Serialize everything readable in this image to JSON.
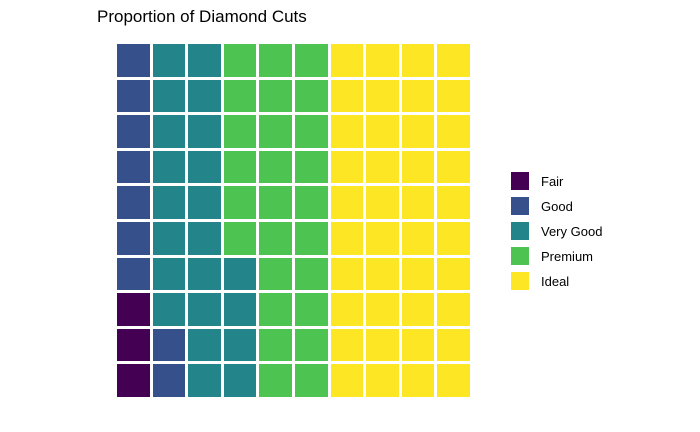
{
  "title": "Proportion of Diamond Cuts",
  "colors": {
    "fair": "#440154",
    "good": "#35508B",
    "very_good": "#238489",
    "premium": "#4DC351",
    "ideal": "#FDE725",
    "background": "#FFFFFF",
    "gap": "#FFFFFF",
    "text": "#000000"
  },
  "legend": {
    "position": "right",
    "items": [
      {
        "key": "fair",
        "label": "Fair"
      },
      {
        "key": "good",
        "label": "Good"
      },
      {
        "key": "very_good",
        "label": "Very Good"
      },
      {
        "key": "premium",
        "label": "Premium"
      },
      {
        "key": "ideal",
        "label": "Ideal"
      }
    ]
  },
  "chart_data": {
    "type": "waffle",
    "title": "Proportion of Diamond Cuts",
    "grid_rows": 10,
    "grid_cols": 10,
    "total_squares": 100,
    "units": "percent (1 square = 1%)",
    "categories": [
      "Fair",
      "Good",
      "Very Good",
      "Premium",
      "Ideal"
    ],
    "values": [
      3,
      9,
      22,
      26,
      40
    ],
    "legend_position": "right",
    "axes": "none",
    "grid": [
      [
        "good",
        "very_good",
        "very_good",
        "premium",
        "premium",
        "premium",
        "ideal",
        "ideal",
        "ideal",
        "ideal"
      ],
      [
        "good",
        "very_good",
        "very_good",
        "premium",
        "premium",
        "premium",
        "ideal",
        "ideal",
        "ideal",
        "ideal"
      ],
      [
        "good",
        "very_good",
        "very_good",
        "premium",
        "premium",
        "premium",
        "ideal",
        "ideal",
        "ideal",
        "ideal"
      ],
      [
        "good",
        "very_good",
        "very_good",
        "premium",
        "premium",
        "premium",
        "ideal",
        "ideal",
        "ideal",
        "ideal"
      ],
      [
        "good",
        "very_good",
        "very_good",
        "premium",
        "premium",
        "premium",
        "ideal",
        "ideal",
        "ideal",
        "ideal"
      ],
      [
        "good",
        "very_good",
        "very_good",
        "premium",
        "premium",
        "premium",
        "ideal",
        "ideal",
        "ideal",
        "ideal"
      ],
      [
        "good",
        "very_good",
        "very_good",
        "very_good",
        "premium",
        "premium",
        "ideal",
        "ideal",
        "ideal",
        "ideal"
      ],
      [
        "fair",
        "very_good",
        "very_good",
        "very_good",
        "premium",
        "premium",
        "ideal",
        "ideal",
        "ideal",
        "ideal"
      ],
      [
        "fair",
        "good",
        "very_good",
        "very_good",
        "premium",
        "premium",
        "ideal",
        "ideal",
        "ideal",
        "ideal"
      ],
      [
        "fair",
        "good",
        "very_good",
        "very_good",
        "premium",
        "premium",
        "ideal",
        "ideal",
        "ideal",
        "ideal"
      ]
    ]
  }
}
